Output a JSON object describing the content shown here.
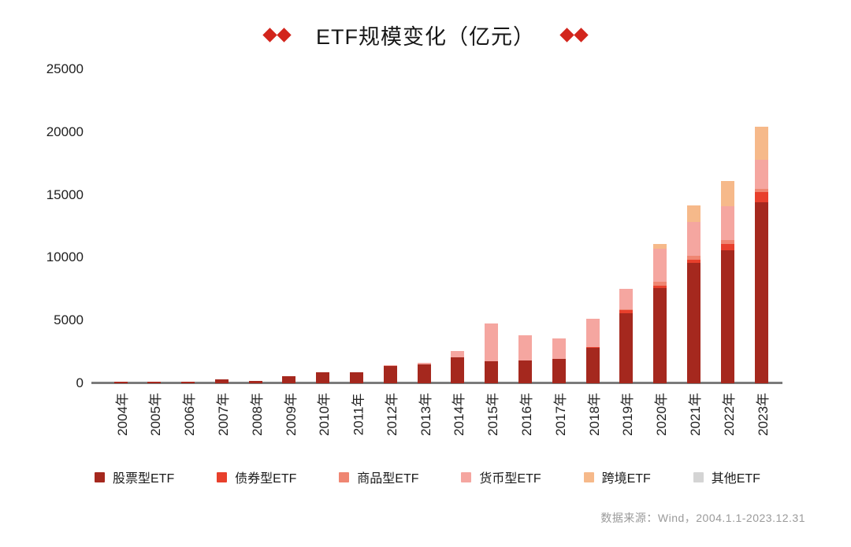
{
  "header": {
    "title": "ETF规模变化（亿元）",
    "decoration_color": "#D2251C"
  },
  "chart_data": {
    "type": "bar",
    "stacked": true,
    "title": "ETF规模变化（亿元）",
    "unit": "亿元",
    "grid": false,
    "legend_position": "bottom",
    "ylim": [
      0,
      25000
    ],
    "yticks": [
      0,
      5000,
      10000,
      15000,
      20000,
      25000
    ],
    "axis_line_color": "#7b7b7b",
    "categories": [
      "2004年",
      "2005年",
      "2006年",
      "2007年",
      "2008年",
      "2009年",
      "2010年",
      "2011年",
      "2012年",
      "2013年",
      "2014年",
      "2015年",
      "2016年",
      "2017年",
      "2018年",
      "2019年",
      "2020年",
      "2021年",
      "2022年",
      "2023年"
    ],
    "series": [
      {
        "name": "股票型ETF",
        "color": "#A5281E",
        "values": [
          100,
          100,
          100,
          300,
          200,
          550,
          850,
          850,
          1400,
          1500,
          2050,
          1750,
          1800,
          1950,
          2850,
          5600,
          7600,
          9600,
          10600,
          14400
        ]
      },
      {
        "name": "债券型ETF",
        "color": "#E8402C",
        "values": [
          0,
          0,
          0,
          0,
          0,
          0,
          0,
          0,
          0,
          0,
          0,
          0,
          0,
          0,
          50,
          200,
          200,
          250,
          500,
          800
        ]
      },
      {
        "name": "商品型ETF",
        "color": "#EF8672",
        "values": [
          0,
          0,
          0,
          0,
          0,
          0,
          0,
          0,
          0,
          0,
          0,
          0,
          0,
          0,
          0,
          100,
          300,
          280,
          300,
          300
        ]
      },
      {
        "name": "货币型ETF",
        "color": "#F5A6A0",
        "values": [
          0,
          0,
          0,
          0,
          0,
          0,
          0,
          0,
          50,
          120,
          550,
          3000,
          2050,
          1650,
          2250,
          1600,
          2600,
          2700,
          2700,
          2300
        ]
      },
      {
        "name": "跨境ETF",
        "color": "#F6B98A",
        "values": [
          0,
          0,
          0,
          0,
          0,
          0,
          0,
          0,
          0,
          0,
          0,
          0,
          0,
          0,
          0,
          0,
          400,
          1350,
          2000,
          2600
        ]
      },
      {
        "name": "其他ETF",
        "color": "#D4D4D4",
        "values": [
          0,
          0,
          0,
          0,
          0,
          0,
          0,
          0,
          0,
          0,
          0,
          0,
          0,
          0,
          0,
          0,
          0,
          0,
          0,
          0
        ]
      }
    ]
  },
  "footer": {
    "source_note": "数据来源：Wind，2004.1.1-2023.12.31"
  }
}
